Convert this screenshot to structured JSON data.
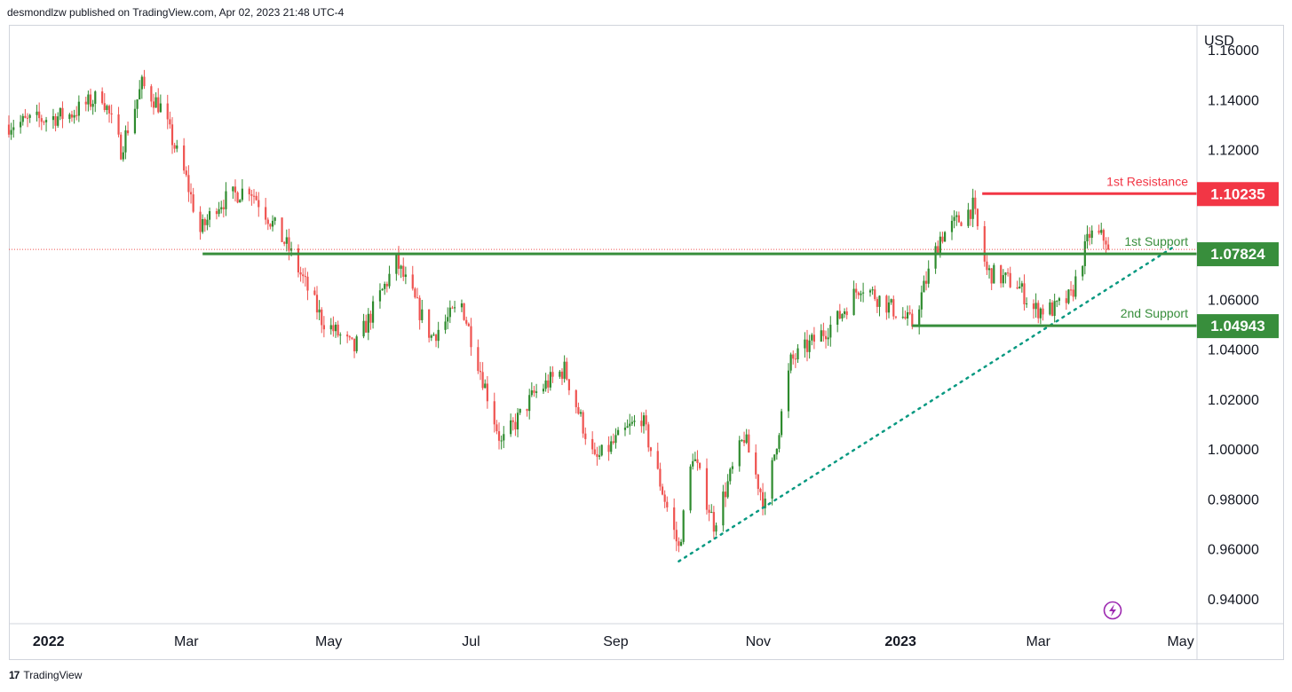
{
  "header": {
    "publisher_text": "desmondlzw published on TradingView.com, Apr 02, 2023 21:48 UTC-4"
  },
  "footer": {
    "brand_logo": "17",
    "brand_name": "TradingView"
  },
  "colors": {
    "up": "#26a69a",
    "up_candle": "#2e8b2e",
    "down": "#ef5350",
    "support": "#388e3c",
    "resistance": "#f23645",
    "trendline": "#089981",
    "last_price_line": "#ef5350",
    "quick_action": "#9c27b0"
  },
  "icons": {
    "quick_action": "lightning-icon"
  },
  "chart_data": {
    "type": "candlestick",
    "symbol": "",
    "currency_label": "USD",
    "ylim": [
      0.93,
      1.17
    ],
    "y_ticks": [
      0.94,
      0.96,
      0.98,
      1.0,
      1.02,
      1.04,
      1.06,
      1.08,
      1.1,
      1.12,
      1.14,
      1.16
    ],
    "y_tick_labels": [
      "0.94000",
      "0.96000",
      "0.98000",
      "1.00000",
      "1.02000",
      "1.04000",
      "1.06000",
      "1.08000",
      "1.10000",
      "1.12000",
      "1.14000",
      "1.16000"
    ],
    "x_range": [
      "2021-12-15",
      "2023-05-08"
    ],
    "x_ticks": [
      {
        "date": "2022-01-01",
        "label": "2022",
        "year": true
      },
      {
        "date": "2022-03-01",
        "label": "Mar",
        "year": false
      },
      {
        "date": "2022-05-01",
        "label": "May",
        "year": false
      },
      {
        "date": "2022-07-01",
        "label": "Jul",
        "year": false
      },
      {
        "date": "2022-09-01",
        "label": "Sep",
        "year": false
      },
      {
        "date": "2022-11-01",
        "label": "Nov",
        "year": false
      },
      {
        "date": "2023-01-01",
        "label": "2023",
        "year": true
      },
      {
        "date": "2023-03-01",
        "label": "Mar",
        "year": false
      },
      {
        "date": "2023-05-01",
        "label": "May",
        "year": false
      }
    ],
    "price_path": [
      [
        "2021-12-15",
        1.13
      ],
      [
        "2022-01-10",
        1.134
      ],
      [
        "2022-01-24",
        1.142
      ],
      [
        "2022-02-01",
        1.12
      ],
      [
        "2022-02-10",
        1.146
      ],
      [
        "2022-02-18",
        1.137
      ],
      [
        "2022-03-01",
        1.108
      ],
      [
        "2022-03-07",
        1.087
      ],
      [
        "2022-03-14",
        1.098
      ],
      [
        "2022-03-28",
        1.105
      ],
      [
        "2022-04-14",
        1.08
      ],
      [
        "2022-04-28",
        1.052
      ],
      [
        "2022-05-12",
        1.04
      ],
      [
        "2022-05-30",
        1.075
      ],
      [
        "2022-06-14",
        1.045
      ],
      [
        "2022-06-27",
        1.058
      ],
      [
        "2022-07-14",
        1.002
      ],
      [
        "2022-07-28",
        1.022
      ],
      [
        "2022-08-10",
        1.032
      ],
      [
        "2022-08-23",
        0.995
      ],
      [
        "2022-09-12",
        1.013
      ],
      [
        "2022-09-28",
        0.96
      ],
      [
        "2022-10-04",
        0.998
      ],
      [
        "2022-10-13",
        0.97
      ],
      [
        "2022-10-26",
        1.005
      ],
      [
        "2022-11-04",
        0.977
      ],
      [
        "2022-11-15",
        1.035
      ],
      [
        "2022-12-05",
        1.052
      ],
      [
        "2022-12-15",
        1.066
      ],
      [
        "2023-01-06",
        1.05
      ],
      [
        "2023-01-18",
        1.085
      ],
      [
        "2023-02-01",
        1.097
      ],
      [
        "2023-02-07",
        1.071
      ],
      [
        "2023-02-20",
        1.066
      ],
      [
        "2023-02-27",
        1.056
      ],
      [
        "2023-03-08",
        1.056
      ],
      [
        "2023-03-15",
        1.061
      ],
      [
        "2023-03-23",
        1.086
      ],
      [
        "2023-03-31",
        1.084
      ]
    ],
    "last_price": 1.08,
    "levels": [
      {
        "name": "1st Resistance",
        "value": 1.10235,
        "value_label": "1.10235",
        "color": "#f23645",
        "from": "2023-02-05"
      },
      {
        "name": "1st Support",
        "value": 1.07824,
        "value_label": "1.07824",
        "color": "#388e3c",
        "from": "2022-03-08"
      },
      {
        "name": "2nd Support",
        "value": 1.04943,
        "value_label": "1.04943",
        "color": "#388e3c",
        "from": "2023-01-06"
      }
    ],
    "trendline": {
      "style": "dotted",
      "points": [
        [
          "2022-09-28",
          0.955
        ],
        [
          "2023-04-28",
          1.081
        ]
      ]
    },
    "grid": false,
    "legend": "none"
  }
}
